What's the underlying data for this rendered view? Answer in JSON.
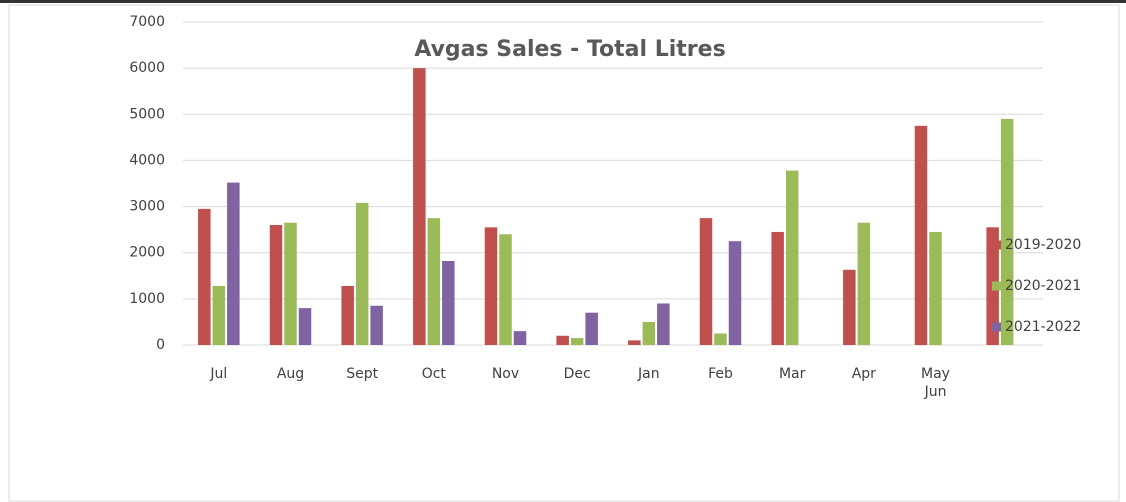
{
  "chart_data": {
    "type": "bar",
    "title": "Avgas Sales - Total Litres",
    "categories": [
      "Jul",
      "Aug",
      "Sept",
      "Oct",
      "Nov",
      "Dec",
      "Jan",
      "Feb",
      "Mar",
      "Apr",
      "May Jun",
      null
    ],
    "series": [
      {
        "name": "2019-2020",
        "color": "#c0504d",
        "values": [
          2950,
          2600,
          1280,
          6000,
          2550,
          200,
          100,
          2750,
          2450,
          1630,
          4750,
          2550
        ]
      },
      {
        "name": "2020-2021",
        "color": "#9bbb59",
        "values": [
          1280,
          2650,
          3080,
          2750,
          2400,
          150,
          500,
          250,
          3780,
          2650,
          2450,
          4900
        ]
      },
      {
        "name": "2021-2022",
        "color": "#8064a2",
        "values": [
          3520,
          800,
          850,
          1820,
          300,
          700,
          900,
          2250,
          null,
          null,
          null,
          null
        ]
      }
    ],
    "ylim": [
      0,
      7000
    ],
    "yticks": [
      0,
      1000,
      2000,
      3000,
      4000,
      5000,
      6000,
      7000
    ],
    "grid": true,
    "legend": "right"
  }
}
